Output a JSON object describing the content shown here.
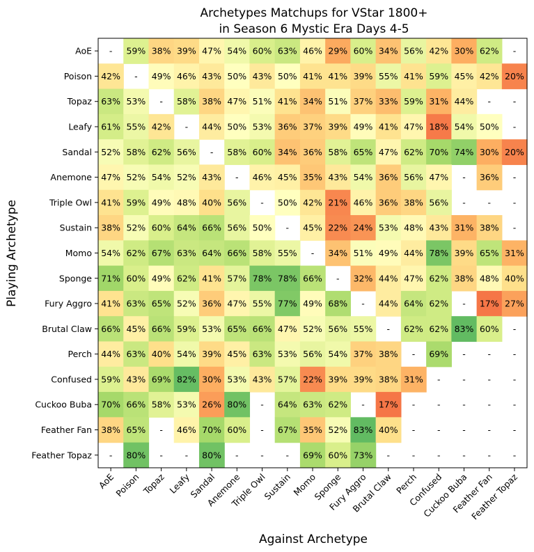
{
  "chart_data": {
    "type": "heatmap",
    "title_lines": [
      "Archetypes Matchups for VStar 1800+",
      "in Season 6 Mystic Era Days 4-5"
    ],
    "xlabel": "Against Archetype",
    "ylabel": "Playing Archetype",
    "rows": [
      "AoE",
      "Poison",
      "Topaz",
      "Leafy",
      "Sandal",
      "Anemone",
      "Triple Owl",
      "Sustain",
      "Momo",
      "Sponge",
      "Fury Aggro",
      "Brutal Claw",
      "Perch",
      "Confused",
      "Cuckoo Buba",
      "Feather Fan",
      "Feather Topaz"
    ],
    "columns": [
      "AoE",
      "Poison",
      "Topaz",
      "Leafy",
      "Sandal",
      "Anemone",
      "Triple Owl",
      "Sustain",
      "Momo",
      "Sponge",
      "Fury Aggro",
      "Brutal Claw",
      "Perch",
      "Confused",
      "Cuckoo Buba",
      "Feather Fan",
      "Feather Topaz"
    ],
    "value_unit": "%",
    "empty_label": "-",
    "color_scale": {
      "low": "#e8543a",
      "mid": "#ffffbf",
      "high": "#4daf4a",
      "domain": [
        0,
        100
      ]
    },
    "values": [
      [
        null,
        59,
        38,
        39,
        47,
        54,
        60,
        63,
        46,
        29,
        60,
        34,
        56,
        42,
        30,
        62,
        null
      ],
      [
        42,
        null,
        49,
        46,
        43,
        50,
        43,
        50,
        41,
        41,
        39,
        55,
        41,
        59,
        45,
        42,
        20
      ],
      [
        63,
        53,
        null,
        58,
        38,
        47,
        51,
        41,
        34,
        51,
        37,
        33,
        59,
        31,
        44,
        null,
        null
      ],
      [
        61,
        55,
        42,
        null,
        44,
        50,
        53,
        36,
        37,
        39,
        49,
        41,
        47,
        18,
        54,
        50,
        null
      ],
      [
        52,
        58,
        62,
        56,
        null,
        58,
        60,
        34,
        36,
        58,
        65,
        47,
        62,
        70,
        74,
        30,
        20
      ],
      [
        47,
        52,
        54,
        52,
        43,
        null,
        46,
        45,
        35,
        43,
        54,
        36,
        56,
        47,
        null,
        36,
        null
      ],
      [
        41,
        59,
        49,
        48,
        40,
        56,
        null,
        50,
        42,
        21,
        46,
        36,
        38,
        56,
        null,
        null,
        null
      ],
      [
        38,
        52,
        60,
        64,
        66,
        56,
        50,
        null,
        45,
        22,
        24,
        53,
        48,
        43,
        31,
        38,
        null
      ],
      [
        54,
        62,
        67,
        63,
        64,
        66,
        58,
        55,
        null,
        34,
        51,
        49,
        44,
        78,
        39,
        65,
        31
      ],
      [
        71,
        60,
        49,
        62,
        41,
        57,
        78,
        78,
        66,
        null,
        32,
        44,
        47,
        62,
        38,
        48,
        40
      ],
      [
        41,
        63,
        65,
        52,
        36,
        47,
        55,
        77,
        49,
        68,
        null,
        44,
        64,
        62,
        null,
        17,
        27
      ],
      [
        66,
        45,
        66,
        59,
        53,
        65,
        66,
        47,
        52,
        56,
        55,
        null,
        62,
        62,
        83,
        60,
        null
      ],
      [
        44,
        63,
        40,
        54,
        39,
        45,
        63,
        53,
        56,
        54,
        37,
        38,
        null,
        69,
        null,
        null,
        null
      ],
      [
        59,
        43,
        69,
        82,
        30,
        53,
        43,
        57,
        22,
        39,
        39,
        38,
        31,
        null,
        null,
        null,
        null
      ],
      [
        70,
        66,
        58,
        53,
        26,
        80,
        null,
        64,
        63,
        62,
        null,
        17,
        null,
        null,
        null,
        null,
        null
      ],
      [
        38,
        65,
        null,
        46,
        70,
        60,
        null,
        67,
        35,
        52,
        83,
        40,
        null,
        null,
        null,
        null,
        null
      ],
      [
        null,
        80,
        null,
        null,
        80,
        null,
        null,
        null,
        69,
        60,
        73,
        null,
        null,
        null,
        null,
        null,
        null
      ]
    ],
    "white_cells": [
      [
        0,
        0
      ],
      [
        0,
        16
      ],
      [
        1,
        1
      ],
      [
        2,
        2
      ],
      [
        3,
        3
      ],
      [
        4,
        4
      ],
      [
        5,
        5
      ],
      [
        6,
        6
      ],
      [
        7,
        7
      ],
      [
        8,
        8
      ],
      [
        9,
        9
      ],
      [
        10,
        10
      ],
      [
        11,
        11
      ],
      [
        12,
        12
      ],
      [
        13,
        13
      ],
      [
        2,
        15
      ],
      [
        2,
        16
      ],
      [
        3,
        16
      ],
      [
        5,
        14
      ],
      [
        5,
        16
      ],
      [
        6,
        14
      ],
      [
        6,
        15
      ],
      [
        6,
        16
      ],
      [
        7,
        16
      ],
      [
        10,
        14
      ],
      [
        11,
        16
      ],
      [
        12,
        14
      ],
      [
        12,
        15
      ],
      [
        12,
        16
      ],
      [
        13,
        14
      ],
      [
        13,
        15
      ],
      [
        13,
        16
      ],
      [
        14,
        6
      ],
      [
        14,
        10
      ],
      [
        14,
        12
      ],
      [
        14,
        13
      ],
      [
        14,
        14
      ],
      [
        14,
        15
      ],
      [
        14,
        16
      ],
      [
        15,
        2
      ],
      [
        15,
        6
      ],
      [
        15,
        12
      ],
      [
        15,
        13
      ],
      [
        15,
        14
      ],
      [
        15,
        15
      ],
      [
        15,
        16
      ],
      [
        16,
        0
      ],
      [
        16,
        2
      ],
      [
        16,
        3
      ],
      [
        16,
        5
      ],
      [
        16,
        6
      ],
      [
        16,
        7
      ],
      [
        16,
        11
      ],
      [
        16,
        12
      ],
      [
        16,
        13
      ],
      [
        16,
        14
      ],
      [
        16,
        15
      ],
      [
        16,
        16
      ]
    ]
  }
}
